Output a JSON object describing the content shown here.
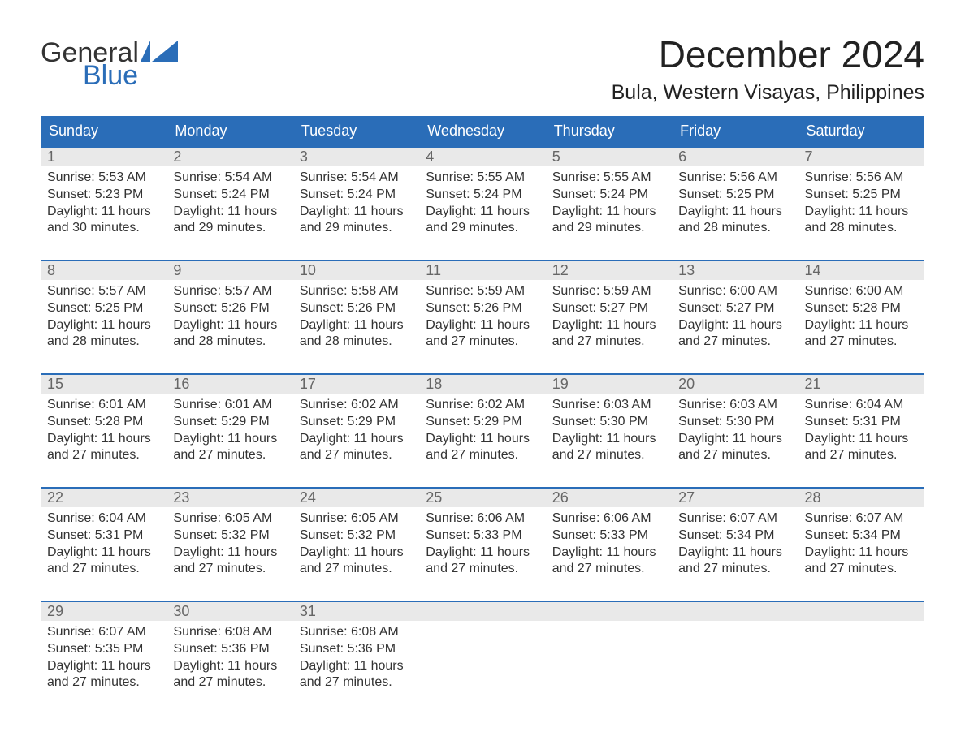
{
  "brand": {
    "word1": "General",
    "word2": "Blue"
  },
  "title": "December 2024",
  "location": "Bula, Western Visayas, Philippines",
  "colors": {
    "header_bg": "#2a6db8",
    "week_border": "#2a6db8",
    "daynum_bg": "#e9e9e9",
    "text": "#333333",
    "logo_blue": "#2a6db8"
  },
  "day_labels": [
    "Sunday",
    "Monday",
    "Tuesday",
    "Wednesday",
    "Thursday",
    "Friday",
    "Saturday"
  ],
  "weeks": [
    [
      {
        "n": "1",
        "sunrise": "Sunrise: 5:53 AM",
        "sunset": "Sunset: 5:23 PM",
        "d1": "Daylight: 11 hours",
        "d2": "and 30 minutes."
      },
      {
        "n": "2",
        "sunrise": "Sunrise: 5:54 AM",
        "sunset": "Sunset: 5:24 PM",
        "d1": "Daylight: 11 hours",
        "d2": "and 29 minutes."
      },
      {
        "n": "3",
        "sunrise": "Sunrise: 5:54 AM",
        "sunset": "Sunset: 5:24 PM",
        "d1": "Daylight: 11 hours",
        "d2": "and 29 minutes."
      },
      {
        "n": "4",
        "sunrise": "Sunrise: 5:55 AM",
        "sunset": "Sunset: 5:24 PM",
        "d1": "Daylight: 11 hours",
        "d2": "and 29 minutes."
      },
      {
        "n": "5",
        "sunrise": "Sunrise: 5:55 AM",
        "sunset": "Sunset: 5:24 PM",
        "d1": "Daylight: 11 hours",
        "d2": "and 29 minutes."
      },
      {
        "n": "6",
        "sunrise": "Sunrise: 5:56 AM",
        "sunset": "Sunset: 5:25 PM",
        "d1": "Daylight: 11 hours",
        "d2": "and 28 minutes."
      },
      {
        "n": "7",
        "sunrise": "Sunrise: 5:56 AM",
        "sunset": "Sunset: 5:25 PM",
        "d1": "Daylight: 11 hours",
        "d2": "and 28 minutes."
      }
    ],
    [
      {
        "n": "8",
        "sunrise": "Sunrise: 5:57 AM",
        "sunset": "Sunset: 5:25 PM",
        "d1": "Daylight: 11 hours",
        "d2": "and 28 minutes."
      },
      {
        "n": "9",
        "sunrise": "Sunrise: 5:57 AM",
        "sunset": "Sunset: 5:26 PM",
        "d1": "Daylight: 11 hours",
        "d2": "and 28 minutes."
      },
      {
        "n": "10",
        "sunrise": "Sunrise: 5:58 AM",
        "sunset": "Sunset: 5:26 PM",
        "d1": "Daylight: 11 hours",
        "d2": "and 28 minutes."
      },
      {
        "n": "11",
        "sunrise": "Sunrise: 5:59 AM",
        "sunset": "Sunset: 5:26 PM",
        "d1": "Daylight: 11 hours",
        "d2": "and 27 minutes."
      },
      {
        "n": "12",
        "sunrise": "Sunrise: 5:59 AM",
        "sunset": "Sunset: 5:27 PM",
        "d1": "Daylight: 11 hours",
        "d2": "and 27 minutes."
      },
      {
        "n": "13",
        "sunrise": "Sunrise: 6:00 AM",
        "sunset": "Sunset: 5:27 PM",
        "d1": "Daylight: 11 hours",
        "d2": "and 27 minutes."
      },
      {
        "n": "14",
        "sunrise": "Sunrise: 6:00 AM",
        "sunset": "Sunset: 5:28 PM",
        "d1": "Daylight: 11 hours",
        "d2": "and 27 minutes."
      }
    ],
    [
      {
        "n": "15",
        "sunrise": "Sunrise: 6:01 AM",
        "sunset": "Sunset: 5:28 PM",
        "d1": "Daylight: 11 hours",
        "d2": "and 27 minutes."
      },
      {
        "n": "16",
        "sunrise": "Sunrise: 6:01 AM",
        "sunset": "Sunset: 5:29 PM",
        "d1": "Daylight: 11 hours",
        "d2": "and 27 minutes."
      },
      {
        "n": "17",
        "sunrise": "Sunrise: 6:02 AM",
        "sunset": "Sunset: 5:29 PM",
        "d1": "Daylight: 11 hours",
        "d2": "and 27 minutes."
      },
      {
        "n": "18",
        "sunrise": "Sunrise: 6:02 AM",
        "sunset": "Sunset: 5:29 PM",
        "d1": "Daylight: 11 hours",
        "d2": "and 27 minutes."
      },
      {
        "n": "19",
        "sunrise": "Sunrise: 6:03 AM",
        "sunset": "Sunset: 5:30 PM",
        "d1": "Daylight: 11 hours",
        "d2": "and 27 minutes."
      },
      {
        "n": "20",
        "sunrise": "Sunrise: 6:03 AM",
        "sunset": "Sunset: 5:30 PM",
        "d1": "Daylight: 11 hours",
        "d2": "and 27 minutes."
      },
      {
        "n": "21",
        "sunrise": "Sunrise: 6:04 AM",
        "sunset": "Sunset: 5:31 PM",
        "d1": "Daylight: 11 hours",
        "d2": "and 27 minutes."
      }
    ],
    [
      {
        "n": "22",
        "sunrise": "Sunrise: 6:04 AM",
        "sunset": "Sunset: 5:31 PM",
        "d1": "Daylight: 11 hours",
        "d2": "and 27 minutes."
      },
      {
        "n": "23",
        "sunrise": "Sunrise: 6:05 AM",
        "sunset": "Sunset: 5:32 PM",
        "d1": "Daylight: 11 hours",
        "d2": "and 27 minutes."
      },
      {
        "n": "24",
        "sunrise": "Sunrise: 6:05 AM",
        "sunset": "Sunset: 5:32 PM",
        "d1": "Daylight: 11 hours",
        "d2": "and 27 minutes."
      },
      {
        "n": "25",
        "sunrise": "Sunrise: 6:06 AM",
        "sunset": "Sunset: 5:33 PM",
        "d1": "Daylight: 11 hours",
        "d2": "and 27 minutes."
      },
      {
        "n": "26",
        "sunrise": "Sunrise: 6:06 AM",
        "sunset": "Sunset: 5:33 PM",
        "d1": "Daylight: 11 hours",
        "d2": "and 27 minutes."
      },
      {
        "n": "27",
        "sunrise": "Sunrise: 6:07 AM",
        "sunset": "Sunset: 5:34 PM",
        "d1": "Daylight: 11 hours",
        "d2": "and 27 minutes."
      },
      {
        "n": "28",
        "sunrise": "Sunrise: 6:07 AM",
        "sunset": "Sunset: 5:34 PM",
        "d1": "Daylight: 11 hours",
        "d2": "and 27 minutes."
      }
    ],
    [
      {
        "n": "29",
        "sunrise": "Sunrise: 6:07 AM",
        "sunset": "Sunset: 5:35 PM",
        "d1": "Daylight: 11 hours",
        "d2": "and 27 minutes."
      },
      {
        "n": "30",
        "sunrise": "Sunrise: 6:08 AM",
        "sunset": "Sunset: 5:36 PM",
        "d1": "Daylight: 11 hours",
        "d2": "and 27 minutes."
      },
      {
        "n": "31",
        "sunrise": "Sunrise: 6:08 AM",
        "sunset": "Sunset: 5:36 PM",
        "d1": "Daylight: 11 hours",
        "d2": "and 27 minutes."
      },
      null,
      null,
      null,
      null
    ]
  ]
}
